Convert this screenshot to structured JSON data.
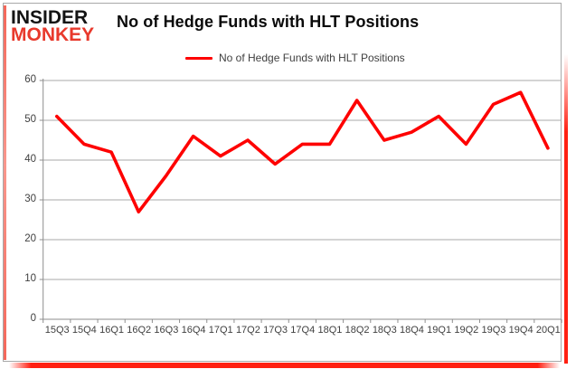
{
  "brand": {
    "line1": "INSIDER",
    "line2": "MONKEY",
    "color_line1": "#141414",
    "color_line2": "#e8392c"
  },
  "title": "No of Hedge Funds with HLT Positions",
  "legend": {
    "label": "No of Hedge Funds with HLT Positions",
    "swatch_color": "#fe0000"
  },
  "chart_data": {
    "type": "line",
    "title": "No of Hedge Funds with HLT Positions",
    "categories": [
      "15Q3",
      "15Q4",
      "16Q1",
      "16Q2",
      "16Q3",
      "16Q4",
      "17Q1",
      "17Q2",
      "17Q3",
      "17Q4",
      "18Q1",
      "18Q2",
      "18Q3",
      "18Q4",
      "19Q1",
      "19Q2",
      "19Q3",
      "19Q4",
      "20Q1"
    ],
    "values": [
      51,
      44,
      42,
      27,
      36,
      46,
      41,
      45,
      39,
      44,
      44,
      55,
      45,
      47,
      51,
      44,
      54,
      57,
      43
    ],
    "xlabel": "",
    "ylabel": "",
    "ylim": [
      0,
      60
    ],
    "yticks": [
      0,
      10,
      20,
      30,
      40,
      50,
      60
    ],
    "grid": true,
    "legend_position": "top-center",
    "line_color": "#fe0000",
    "gridline_color": "#a9a9a9",
    "axis_color": "#8e8e8e",
    "tick_label_color": "#3f3f3f"
  }
}
